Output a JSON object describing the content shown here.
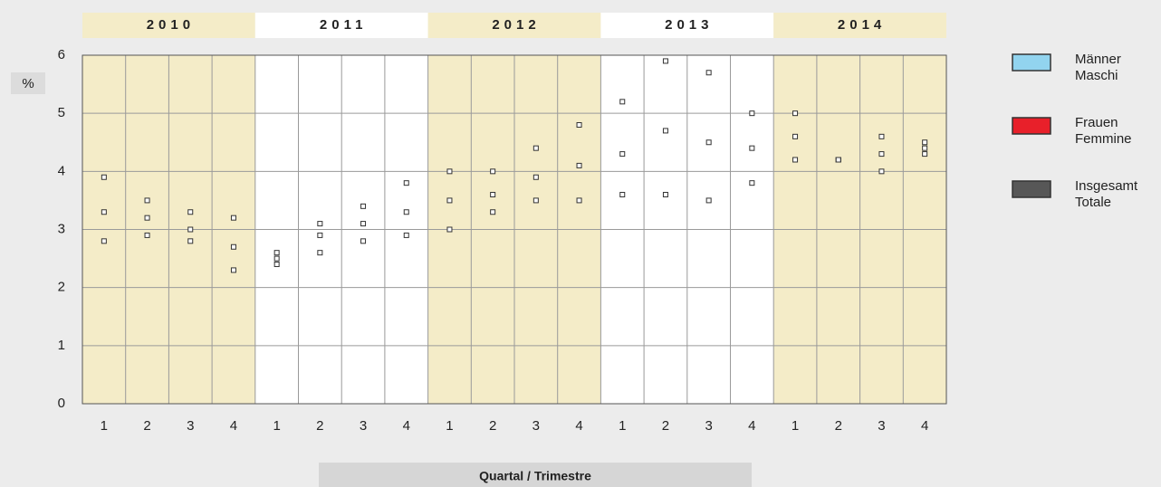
{
  "chart_data": {
    "type": "line",
    "y_label": "%",
    "x_label": "Quartal / Trimestre",
    "groups": [
      "2010",
      "2011",
      "2012",
      "2013",
      "2014"
    ],
    "group_colors": [
      "#f4ecc8",
      "#ffffff",
      "#f4ecc8",
      "#ffffff",
      "#f4ecc8"
    ],
    "categories": [
      "1",
      "2",
      "3",
      "4",
      "1",
      "2",
      "3",
      "4",
      "1",
      "2",
      "3",
      "4",
      "1",
      "2",
      "3",
      "4",
      "1",
      "2",
      "3",
      "4"
    ],
    "series": [
      {
        "name": [
          "Männer",
          "Maschi"
        ],
        "color": "#92d4ef",
        "values": [
          2.8,
          2.9,
          2.8,
          2.3,
          2.4,
          2.6,
          2.8,
          2.9,
          3.0,
          3.3,
          3.5,
          3.5,
          3.6,
          3.6,
          3.5,
          3.8,
          4.2,
          4.2,
          4.6,
          4.5
        ]
      },
      {
        "name": [
          "Frauen",
          "Femmine"
        ],
        "color": "#e8202a",
        "values": [
          3.9,
          3.5,
          3.3,
          3.2,
          2.6,
          3.1,
          3.4,
          3.8,
          4.0,
          4.0,
          4.4,
          4.8,
          5.2,
          5.9,
          5.7,
          5.0,
          5.0,
          4.2,
          4.0,
          4.3
        ]
      },
      {
        "name": [
          "Insgesamt",
          "Totale"
        ],
        "color": "#575757",
        "values": [
          3.3,
          3.2,
          3.0,
          2.7,
          2.5,
          2.9,
          3.1,
          3.3,
          3.5,
          3.6,
          3.9,
          4.1,
          4.3,
          4.7,
          4.5,
          4.4,
          4.6,
          4.2,
          4.3,
          4.4
        ]
      }
    ],
    "ylim": [
      0,
      6
    ],
    "yticks": [
      0,
      1,
      2,
      3,
      4,
      5,
      6
    ],
    "grid": true
  }
}
